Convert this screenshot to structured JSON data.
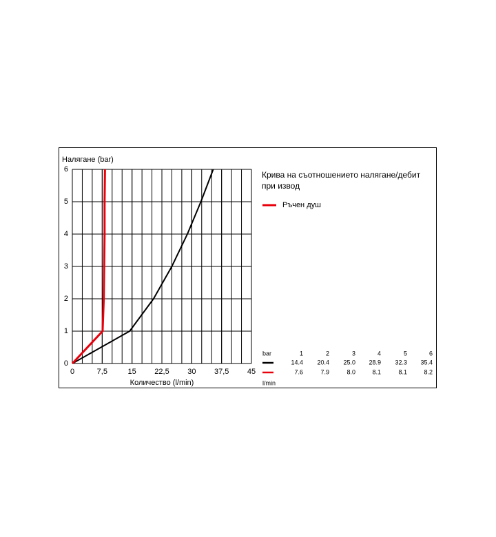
{
  "chart_data": {
    "type": "line",
    "title": "Крива на съотношението налягане/дебит при извод",
    "y_label": "Налягане (bar)",
    "x_label": "Количество (l/min)",
    "xlim": [
      0,
      45
    ],
    "ylim": [
      0,
      6
    ],
    "xticks": [
      0,
      {
        "value": 7.5,
        "label": "7,5"
      },
      15,
      {
        "value": 22.5,
        "label": "22,5"
      },
      30,
      {
        "value": 37.5,
        "label": "37,5"
      },
      45
    ],
    "yticks": [
      0,
      1,
      2,
      3,
      4,
      5,
      6
    ],
    "grid": true,
    "xgrid_step": 2.5,
    "legend": "upper right",
    "series": [
      {
        "color": "#000000",
        "x": [
          0,
          14.4,
          20.4,
          25.0,
          28.9,
          32.3,
          35.4
        ],
        "values": [
          0,
          1,
          2,
          3,
          4,
          5,
          6
        ]
      },
      {
        "name": "Ръчен душ",
        "color": "#e8000b",
        "x": [
          0,
          7.6,
          7.9,
          8.0,
          8.1,
          8.1,
          8.2
        ],
        "values": [
          0,
          1,
          2,
          3,
          4,
          5,
          6
        ]
      }
    ],
    "table": {
      "header": [
        "bar",
        "1",
        "2",
        "3",
        "4",
        "5",
        "6"
      ],
      "rows": [
        [
          "14.4",
          "20.4",
          "25.0",
          "28.9",
          "32.3",
          "35.4"
        ],
        [
          "7.6",
          "7.9",
          "8.0",
          "8.1",
          "8.1",
          "8.2"
        ]
      ],
      "unit": "l/min"
    }
  }
}
